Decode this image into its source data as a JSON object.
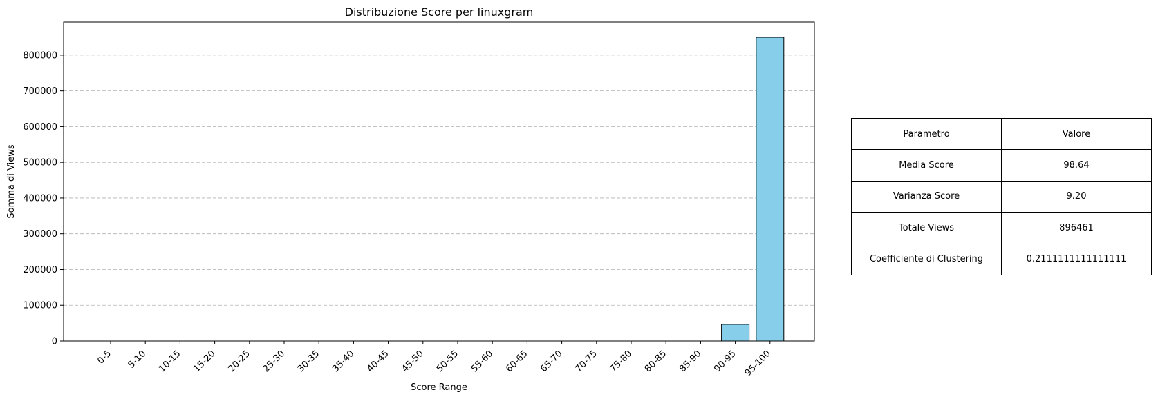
{
  "chart_data": {
    "type": "bar",
    "title": "Distribuzione Score per linuxgram",
    "xlabel": "Score Range",
    "ylabel": "Somma di Views",
    "categories": [
      "0-5",
      "5-10",
      "10-15",
      "15-20",
      "20-25",
      "25-30",
      "30-35",
      "35-40",
      "40-45",
      "45-50",
      "50-55",
      "55-60",
      "60-65",
      "65-70",
      "70-75",
      "75-80",
      "80-85",
      "85-90",
      "90-95",
      "95-100"
    ],
    "values": [
      0,
      0,
      0,
      0,
      0,
      0,
      0,
      0,
      0,
      0,
      0,
      0,
      0,
      0,
      0,
      0,
      0,
      0,
      46500,
      849961
    ],
    "ylim": [
      0,
      892500
    ],
    "yticks": [
      0,
      100000,
      200000,
      300000,
      400000,
      500000,
      600000,
      700000,
      800000
    ],
    "grid": "y-dashed",
    "bar_color": "#87ceeb",
    "bar_edge_color": "#000000"
  },
  "stats_table": {
    "header": {
      "param": "Parametro",
      "value": "Valore"
    },
    "rows": [
      {
        "param": "Media Score",
        "value": "98.64"
      },
      {
        "param": "Varianza Score",
        "value": "9.20"
      },
      {
        "param": "Totale Views",
        "value": "896461"
      },
      {
        "param": "Coefficiente di Clustering",
        "value": "0.2111111111111111"
      }
    ]
  }
}
